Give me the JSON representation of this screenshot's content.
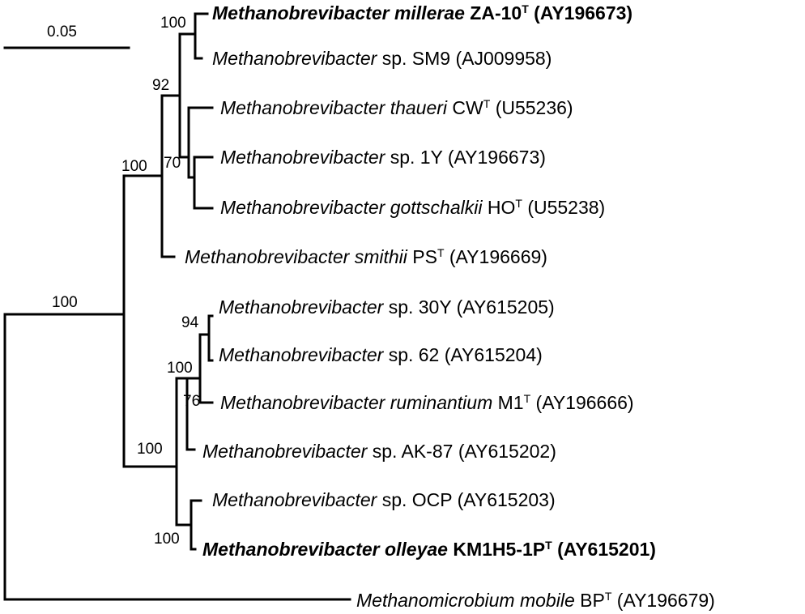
{
  "scale_bar": {
    "value": "0.05"
  },
  "taxa": [
    {
      "genus": "Methanobrevibacter",
      "epithet": "millerae",
      "strain": "ZA-10",
      "type_strain": true,
      "accession": "(AY196673)",
      "bold": true
    },
    {
      "genus": "Methanobrevibacter",
      "epithet": "",
      "strain": "sp. SM9",
      "type_strain": false,
      "accession": "(AJ009958)",
      "bold": false
    },
    {
      "genus": "Methanobrevibacter",
      "epithet": "thaueri",
      "strain": "CW",
      "type_strain": true,
      "accession": "(U55236)",
      "bold": false
    },
    {
      "genus": "Methanobrevibacter",
      "epithet": "",
      "strain": "sp. 1Y",
      "type_strain": false,
      "accession": "(AY196673)",
      "bold": false
    },
    {
      "genus": "Methanobrevibacter",
      "epithet": "gottschalkii",
      "strain": "HO",
      "type_strain": true,
      "accession": "(U55238)",
      "bold": false
    },
    {
      "genus": "Methanobrevibacter",
      "epithet": "smithii",
      "strain": "PS",
      "type_strain": true,
      "accession": "(AY196669)",
      "bold": false
    },
    {
      "genus": "Methanobrevibacter",
      "epithet": "",
      "strain": "sp. 30Y",
      "type_strain": false,
      "accession": "(AY615205)",
      "bold": false
    },
    {
      "genus": "Methanobrevibacter",
      "epithet": "",
      "strain": "sp. 62",
      "type_strain": false,
      "accession": "(AY615204)",
      "bold": false
    },
    {
      "genus": "Methanobrevibacter",
      "epithet": "ruminantium",
      "strain": "M1",
      "type_strain": true,
      "accession": "(AY196666)",
      "bold": false
    },
    {
      "genus": "Methanobrevibacter",
      "epithet": "",
      "strain": "sp. AK-87",
      "type_strain": false,
      "accession": "(AY615202)",
      "bold": false
    },
    {
      "genus": "Methanobrevibacter",
      "epithet": "",
      "strain": "sp. OCP",
      "type_strain": false,
      "accession": "(AY615203)",
      "bold": false
    },
    {
      "genus": "Methanobrevibacter",
      "epithet": "olleyae",
      "strain": "KM1H5-1P",
      "type_strain": true,
      "accession": "(AY615201)",
      "bold": true
    },
    {
      "genus": "Methanomicrobium",
      "epithet": "mobile",
      "strain": "BP",
      "type_strain": true,
      "accession": "(AY196679)",
      "bold": false
    }
  ],
  "bootstrap_values": [
    "100",
    "92",
    "70",
    "100",
    "100",
    "94",
    "100",
    "76",
    "100",
    "100"
  ]
}
